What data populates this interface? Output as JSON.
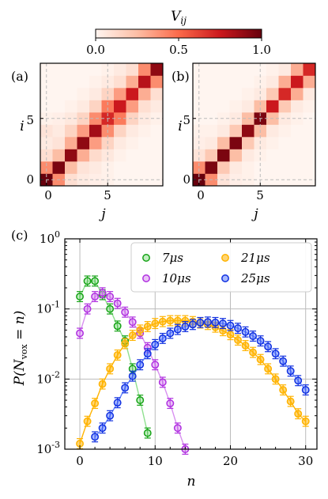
{
  "colorbar": {
    "label": "V_ij",
    "ticks": [
      "0.0",
      "0.5",
      "1.0"
    ],
    "vmin": 0.0,
    "vmax": 1.0
  },
  "chart_data": [
    {
      "type": "heatmap",
      "panel_label": "(a)",
      "xlabel": "j",
      "ylabel": "i",
      "x_ticks": [
        "0",
        "5"
      ],
      "y_ticks": [
        "0",
        "5"
      ],
      "size": 10,
      "rows_bottom_to_top": [
        [
          1.0,
          0.4,
          0.1,
          0.05,
          0.03,
          0.02,
          0.0,
          0.0,
          0.0,
          0.0
        ],
        [
          0.4,
          0.95,
          0.25,
          0.08,
          0.05,
          0.02,
          0.0,
          0.0,
          0.0,
          0.0
        ],
        [
          0.1,
          0.25,
          0.9,
          0.3,
          0.12,
          0.06,
          0.02,
          0.0,
          0.0,
          0.0
        ],
        [
          0.05,
          0.08,
          0.3,
          0.9,
          0.35,
          0.15,
          0.05,
          0.02,
          0.0,
          0.0
        ],
        [
          0.08,
          0.05,
          0.15,
          0.35,
          0.85,
          0.4,
          0.15,
          0.05,
          0.02,
          0.0
        ],
        [
          0.02,
          0.03,
          0.06,
          0.15,
          0.4,
          0.7,
          0.45,
          0.15,
          0.05,
          0.02
        ],
        [
          0.0,
          0.0,
          0.02,
          0.05,
          0.15,
          0.45,
          0.75,
          0.35,
          0.1,
          0.05
        ],
        [
          0.0,
          0.0,
          0.0,
          0.02,
          0.05,
          0.15,
          0.35,
          0.75,
          0.3,
          0.1
        ],
        [
          0.0,
          0.0,
          0.0,
          0.0,
          0.02,
          0.05,
          0.1,
          0.3,
          0.8,
          0.4
        ],
        [
          0.0,
          0.0,
          0.0,
          0.0,
          0.0,
          0.02,
          0.05,
          0.1,
          0.4,
          0.9
        ]
      ]
    },
    {
      "type": "heatmap",
      "panel_label": "(b)",
      "xlabel": "j",
      "ylabel": "i",
      "x_ticks": [
        "0",
        "5"
      ],
      "y_ticks": [
        "0",
        "5"
      ],
      "size": 10,
      "rows_bottom_to_top": [
        [
          1.0,
          0.4,
          0.08,
          0.03,
          0.02,
          0.0,
          0.0,
          0.0,
          0.0,
          0.0
        ],
        [
          0.4,
          0.95,
          0.2,
          0.05,
          0.02,
          0.0,
          0.0,
          0.0,
          0.0,
          0.0
        ],
        [
          0.08,
          0.2,
          0.95,
          0.25,
          0.05,
          0.02,
          0.0,
          0.0,
          0.0,
          0.0
        ],
        [
          0.03,
          0.05,
          0.25,
          0.95,
          0.2,
          0.05,
          0.02,
          0.0,
          0.0,
          0.0
        ],
        [
          0.02,
          0.02,
          0.05,
          0.2,
          0.9,
          0.25,
          0.05,
          0.02,
          0.0,
          0.0
        ],
        [
          0.0,
          0.0,
          0.02,
          0.05,
          0.25,
          0.95,
          0.25,
          0.05,
          0.02,
          0.0
        ],
        [
          0.0,
          0.0,
          0.0,
          0.02,
          0.05,
          0.25,
          0.75,
          0.2,
          0.05,
          0.02
        ],
        [
          0.0,
          0.0,
          0.0,
          0.0,
          0.02,
          0.05,
          0.2,
          0.7,
          0.3,
          0.05
        ],
        [
          0.0,
          0.0,
          0.0,
          0.0,
          0.0,
          0.02,
          0.05,
          0.3,
          0.75,
          0.3
        ],
        [
          0.0,
          0.0,
          0.0,
          0.0,
          0.0,
          0.0,
          0.02,
          0.05,
          0.3,
          0.7
        ]
      ]
    },
    {
      "type": "scatter",
      "panel_label": "(c)",
      "xlabel": "n",
      "ylabel": "P(N_vox = n)",
      "x_ticks": [
        "0",
        "10",
        "20",
        "30"
      ],
      "y_ticks": [
        "10^0",
        "10^-1",
        "10^-2",
        "10^-3"
      ],
      "xlim": [
        -2,
        31.5
      ],
      "ylim": [
        0.001,
        1.0
      ],
      "yscale": "log",
      "grid": true,
      "legend_position": "top-right",
      "series": [
        {
          "name": "7μs",
          "color": "#16a316",
          "line_color": "#8fe08f",
          "x": [
            0,
            1,
            2,
            3,
            4,
            5,
            6,
            7,
            8,
            9
          ],
          "y": [
            0.15,
            0.25,
            0.25,
            0.16,
            0.1,
            0.057,
            0.035,
            0.014,
            0.005,
            0.0017
          ]
        },
        {
          "name": "10μs",
          "color": "#b030e0",
          "line_color": "#d890f0",
          "x": [
            0,
            1,
            2,
            3,
            4,
            5,
            6,
            7,
            8,
            9,
            10,
            11,
            12,
            13,
            14
          ],
          "y": [
            0.045,
            0.1,
            0.15,
            0.17,
            0.15,
            0.12,
            0.09,
            0.065,
            0.045,
            0.028,
            0.016,
            0.009,
            0.0045,
            0.002,
            0.001
          ]
        },
        {
          "name": "21μs",
          "color": "#ffb300",
          "line_color": "#ffb300",
          "x": [
            0,
            1,
            2,
            3,
            4,
            5,
            6,
            7,
            8,
            9,
            10,
            11,
            12,
            13,
            14,
            15,
            16,
            17,
            18,
            19,
            20,
            21,
            22,
            23,
            24,
            25,
            26,
            27,
            28,
            29,
            30
          ],
          "y": [
            0.0012,
            0.0025,
            0.0045,
            0.0085,
            0.014,
            0.022,
            0.032,
            0.042,
            0.05,
            0.056,
            0.062,
            0.066,
            0.068,
            0.068,
            0.068,
            0.066,
            0.063,
            0.06,
            0.055,
            0.049,
            0.043,
            0.036,
            0.03,
            0.024,
            0.019,
            0.014,
            0.01,
            0.007,
            0.0048,
            0.0032,
            0.0025
          ]
        },
        {
          "name": "25μs",
          "color": "#1030e0",
          "line_color": "#6080ff",
          "x": [
            2,
            3,
            4,
            5,
            6,
            7,
            8,
            9,
            10,
            11,
            12,
            13,
            14,
            15,
            16,
            17,
            18,
            19,
            20,
            21,
            22,
            23,
            24,
            25,
            26,
            27,
            28,
            29,
            30
          ],
          "y": [
            0.0015,
            0.002,
            0.003,
            0.0046,
            0.0075,
            0.011,
            0.016,
            0.023,
            0.031,
            0.038,
            0.045,
            0.051,
            0.056,
            0.06,
            0.064,
            0.065,
            0.064,
            0.062,
            0.058,
            0.053,
            0.047,
            0.041,
            0.035,
            0.029,
            0.023,
            0.018,
            0.013,
            0.0095,
            0.007
          ]
        }
      ]
    }
  ]
}
